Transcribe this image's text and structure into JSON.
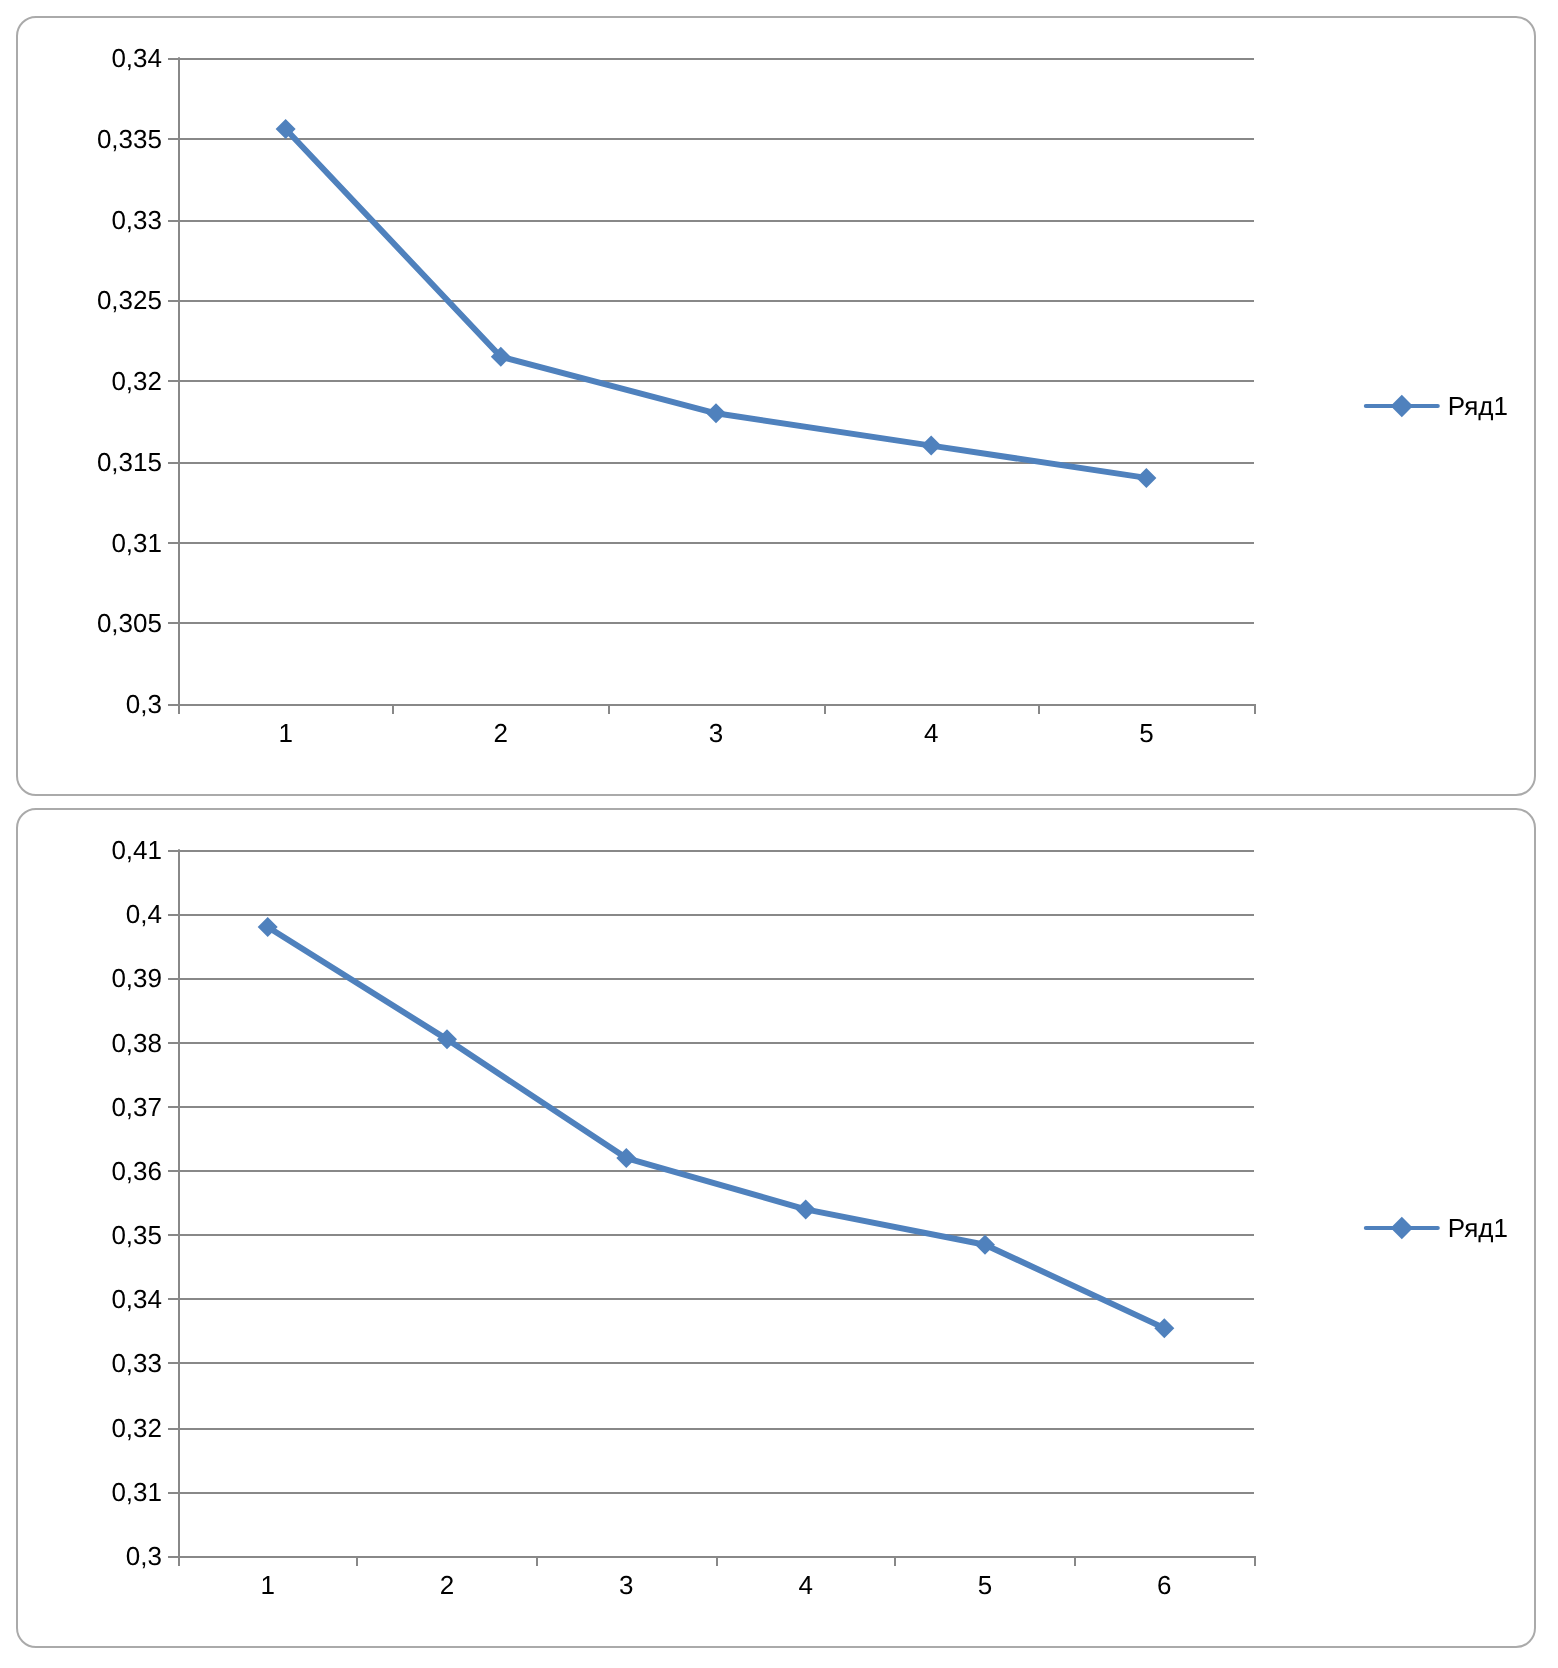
{
  "chart_data": [
    {
      "type": "line",
      "categories": [
        "1",
        "2",
        "3",
        "4",
        "5"
      ],
      "series": [
        {
          "name": "Ряд1",
          "color": "#4f81bd",
          "values": [
            0.3356,
            0.3215,
            0.318,
            0.316,
            0.314
          ]
        }
      ],
      "ylim": [
        0.3,
        0.34
      ],
      "yticks": [
        {
          "value": 0.3,
          "label": "0,3"
        },
        {
          "value": 0.305,
          "label": "0,305"
        },
        {
          "value": 0.31,
          "label": "0,31"
        },
        {
          "value": 0.315,
          "label": "0,315"
        },
        {
          "value": 0.32,
          "label": "0,32"
        },
        {
          "value": 0.325,
          "label": "0,325"
        },
        {
          "value": 0.33,
          "label": "0,33"
        },
        {
          "value": 0.335,
          "label": "0,335"
        },
        {
          "value": 0.34,
          "label": "0,34"
        }
      ],
      "grid": "y",
      "legend": "right",
      "marker": "diamond",
      "line_style": "solid"
    },
    {
      "type": "line",
      "categories": [
        "1",
        "2",
        "3",
        "4",
        "5",
        "6"
      ],
      "series": [
        {
          "name": "Ряд1",
          "color": "#4f81bd",
          "values": [
            0.398,
            0.3805,
            0.362,
            0.354,
            0.3485,
            0.3355
          ]
        }
      ],
      "ylim": [
        0.3,
        0.41
      ],
      "yticks": [
        {
          "value": 0.3,
          "label": "0,3"
        },
        {
          "value": 0.31,
          "label": "0,31"
        },
        {
          "value": 0.32,
          "label": "0,32"
        },
        {
          "value": 0.33,
          "label": "0,33"
        },
        {
          "value": 0.34,
          "label": "0,34"
        },
        {
          "value": 0.35,
          "label": "0,35"
        },
        {
          "value": 0.36,
          "label": "0,36"
        },
        {
          "value": 0.37,
          "label": "0,37"
        },
        {
          "value": 0.38,
          "label": "0,38"
        },
        {
          "value": 0.39,
          "label": "0,39"
        },
        {
          "value": 0.4,
          "label": "0,4"
        },
        {
          "value": 0.41,
          "label": "0,41"
        }
      ],
      "grid": "y",
      "legend": "right",
      "marker": "diamond",
      "line_style": "solid"
    }
  ]
}
